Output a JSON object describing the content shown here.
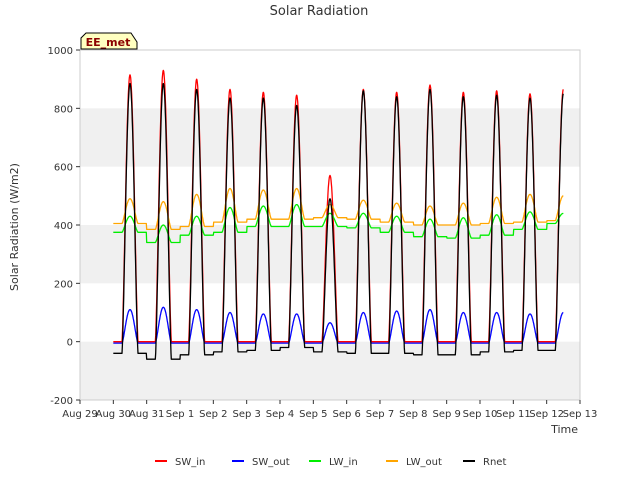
{
  "chart_data": {
    "type": "line",
    "title": "Solar Radiation",
    "xlabel": "Time",
    "ylabel": "Solar Radiation (W/m2)",
    "ylim": [
      -200,
      1000
    ],
    "yticks": [
      -200,
      0,
      200,
      400,
      600,
      800,
      1000
    ],
    "xlim_days": [
      0,
      15
    ],
    "xtick_labels": [
      "Aug 29",
      "Aug 30",
      "Aug 31",
      "Sep 1",
      "Sep 2",
      "Sep 3",
      "Sep 4",
      "Sep 5",
      "Sep 6",
      "Sep 7",
      "Sep 8",
      "Sep 9",
      "Sep 10",
      "Sep 11",
      "Sep 12",
      "Sep 13"
    ],
    "grid": "horizontal bands",
    "legend_placement": "bottom",
    "station_label": "EE_met",
    "days": [
      "Aug 30",
      "Aug 31",
      "Sep 1",
      "Sep 2",
      "Sep 3",
      "Sep 4",
      "Sep 5",
      "Sep 6",
      "Sep 7",
      "Sep 8",
      "Sep 9",
      "Sep 10",
      "Sep 11",
      "Sep 12"
    ],
    "series": [
      {
        "name": "SW_in",
        "color": "#ff0000",
        "daily_peak": [
          915,
          930,
          900,
          865,
          855,
          845,
          570,
          865,
          855,
          880,
          855,
          860,
          850,
          865
        ],
        "night": 0
      },
      {
        "name": "SW_out",
        "color": "#0000ff",
        "daily_peak": [
          110,
          118,
          110,
          100,
          95,
          95,
          65,
          100,
          105,
          110,
          100,
          100,
          95,
          100
        ],
        "night": -5
      },
      {
        "name": "LW_in",
        "color": "#00ee00",
        "daily_peak": [
          430,
          400,
          430,
          460,
          465,
          470,
          440,
          440,
          430,
          420,
          425,
          435,
          445,
          440
        ],
        "night": [
          375,
          340,
          365,
          375,
          395,
          395,
          395,
          390,
          375,
          360,
          355,
          365,
          385,
          405
        ]
      },
      {
        "name": "LW_out",
        "color": "#ffa500",
        "daily_peak": [
          490,
          480,
          505,
          525,
          520,
          525,
          470,
          485,
          475,
          465,
          475,
          495,
          505,
          500
        ],
        "night": [
          405,
          385,
          395,
          410,
          420,
          420,
          425,
          420,
          410,
          400,
          400,
          405,
          410,
          415
        ]
      },
      {
        "name": "Rnet",
        "color": "#000000",
        "daily_peak": [
          885,
          885,
          865,
          835,
          835,
          810,
          490,
          860,
          840,
          865,
          840,
          845,
          835,
          850
        ],
        "night": [
          -40,
          -60,
          -45,
          -35,
          -30,
          -20,
          -35,
          -40,
          -40,
          -45,
          -45,
          -35,
          -30,
          -30
        ]
      }
    ]
  }
}
